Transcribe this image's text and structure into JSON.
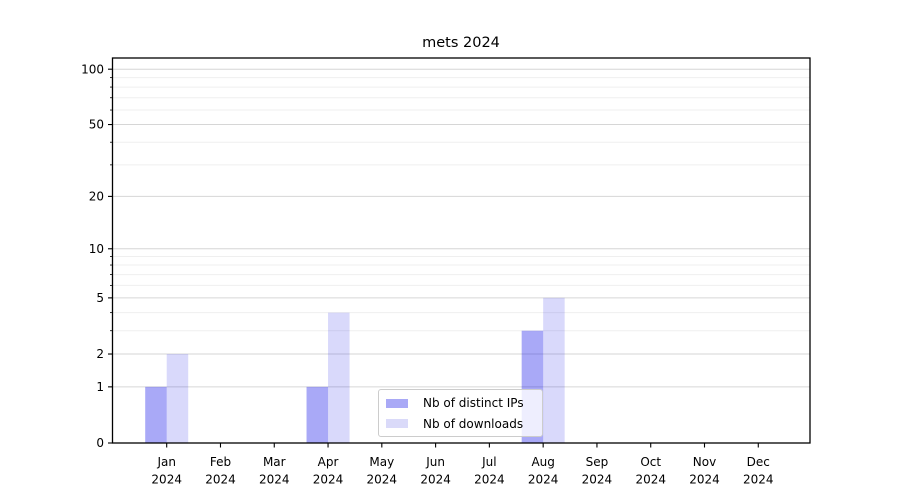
{
  "chart_data": {
    "type": "bar",
    "title": "mets 2024",
    "categories": [
      "Jan",
      "Feb",
      "Mar",
      "Apr",
      "May",
      "Jun",
      "Jul",
      "Aug",
      "Sep",
      "Oct",
      "Nov",
      "Dec"
    ],
    "year_label": "2024",
    "series": [
      {
        "name": "Nb of distinct IPs",
        "values": [
          1,
          0,
          0,
          1,
          0,
          0,
          0,
          3,
          0,
          0,
          0,
          0
        ],
        "bar_fill": "rgba(10,10,232,0.35)",
        "legend_color": "#a9a9f6"
      },
      {
        "name": "Nb of downloads",
        "values": [
          2,
          0,
          0,
          4,
          0,
          0,
          0,
          5,
          0,
          0,
          0,
          0
        ],
        "bar_fill": "rgba(10,10,232,0.155)",
        "legend_color": "#dadaf9"
      }
    ],
    "xlabel": "",
    "ylabel": "",
    "yscale": "log1p",
    "ylim": [
      0,
      112
    ],
    "yticks": [
      0,
      1,
      2,
      5,
      10,
      20,
      50,
      100
    ],
    "yticks_minor": [
      3,
      4,
      6,
      7,
      8,
      9,
      30,
      40,
      60,
      70,
      80,
      90
    ],
    "grid": true,
    "legend_position": "lower center",
    "colors": {
      "axis": "#000000",
      "tick_label": "#000000",
      "grid_major": "#d6d6d6",
      "grid_minor": "#efefef",
      "legend_border": "#cccccc",
      "background": "#ffffff"
    }
  }
}
